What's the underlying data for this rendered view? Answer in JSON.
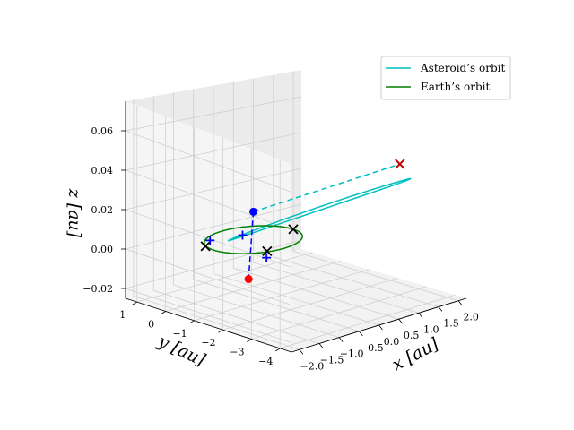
{
  "chart_data": {
    "type": "line",
    "projection": "3d",
    "xlabel": "x [au]",
    "ylabel": "y [au]",
    "zlabel": "z [au]",
    "xlim": [
      -2.2,
      2.2
    ],
    "ylim": [
      -4.4,
      1.4
    ],
    "zlim": [
      -0.025,
      0.075
    ],
    "xticks": [
      "−2.0",
      "−1.5",
      "−1.0",
      "−0.5",
      "0.0",
      "0.5",
      "1.0",
      "1.5",
      "2.0"
    ],
    "xtick_values": [
      -2.0,
      -1.5,
      -1.0,
      -0.5,
      0.0,
      0.5,
      1.0,
      1.5,
      2.0
    ],
    "yticks": [
      "1",
      "0",
      "−1",
      "−2",
      "−3",
      "−4"
    ],
    "ytick_values": [
      1,
      0,
      -1,
      -2,
      -3,
      -4
    ],
    "zticks": [
      "−0.02",
      "0.00",
      "0.02",
      "0.04",
      "0.06"
    ],
    "ztick_values": [
      -0.02,
      0.0,
      0.02,
      0.04,
      0.06
    ],
    "legend": {
      "placement": "upper-right",
      "entries": [
        {
          "label": "Asteroid’s orbit",
          "color": "#00bfbf"
        },
        {
          "label": "Earth’s orbit",
          "color": "#008000"
        }
      ]
    },
    "grid": true,
    "series": [
      {
        "name": "Asteroid’s orbit",
        "kind": "ellipse",
        "color": "#00bfbf",
        "center": [
          0.3,
          -1.9,
          0.025
        ],
        "semi_major": 2.6,
        "semi_minor": 0.55,
        "major_dir": [
          0.35,
          -0.72,
          0.018
        ],
        "minor_dir": [
          0.94,
          0.34,
          0.0
        ]
      },
      {
        "name": "Earth’s orbit",
        "kind": "circle",
        "color": "#008000",
        "center": [
          0,
          0,
          0
        ],
        "radius": 1.0
      }
    ],
    "lines": [
      {
        "style": "dashed",
        "color": "#00bfbf",
        "from": [
          0.0,
          0.0,
          0.015
        ],
        "to": [
          1.1,
          -3.6,
          0.055
        ]
      },
      {
        "style": "dashed",
        "color": "#0000ff",
        "from": [
          0.0,
          0.0,
          0.015
        ],
        "to": [
          -0.55,
          -0.6,
          -0.015
        ]
      }
    ],
    "points": [
      {
        "marker": "x",
        "color": "#000000",
        "pos": [
          1.0,
          0.0,
          0.0
        ]
      },
      {
        "marker": "x",
        "color": "#000000",
        "pos": [
          -0.95,
          0.35,
          0.0
        ]
      },
      {
        "marker": "x",
        "color": "#000000",
        "pos": [
          -0.3,
          -0.9,
          0.0
        ]
      },
      {
        "marker": "x",
        "color": "#000000",
        "pos": [
          1.1,
          -3.6,
          0.055
        ]
      },
      {
        "marker": "x",
        "color": "#cc0000",
        "pos": [
          1.1,
          -3.6,
          0.055
        ]
      },
      {
        "marker": "+",
        "color": "#0000ff",
        "pos": [
          -0.8,
          0.4,
          0.002
        ]
      },
      {
        "marker": "+",
        "color": "#0000ff",
        "pos": [
          -0.2,
          0.1,
          0.003
        ]
      },
      {
        "marker": "+",
        "color": "#0000ff",
        "pos": [
          -0.35,
          -0.95,
          -0.003
        ]
      },
      {
        "marker": "o",
        "color": "#0000ff",
        "pos": [
          0.0,
          0.0,
          0.015
        ]
      },
      {
        "marker": "o",
        "color": "#ff0000",
        "pos": [
          -0.55,
          -0.6,
          -0.015
        ]
      }
    ]
  }
}
